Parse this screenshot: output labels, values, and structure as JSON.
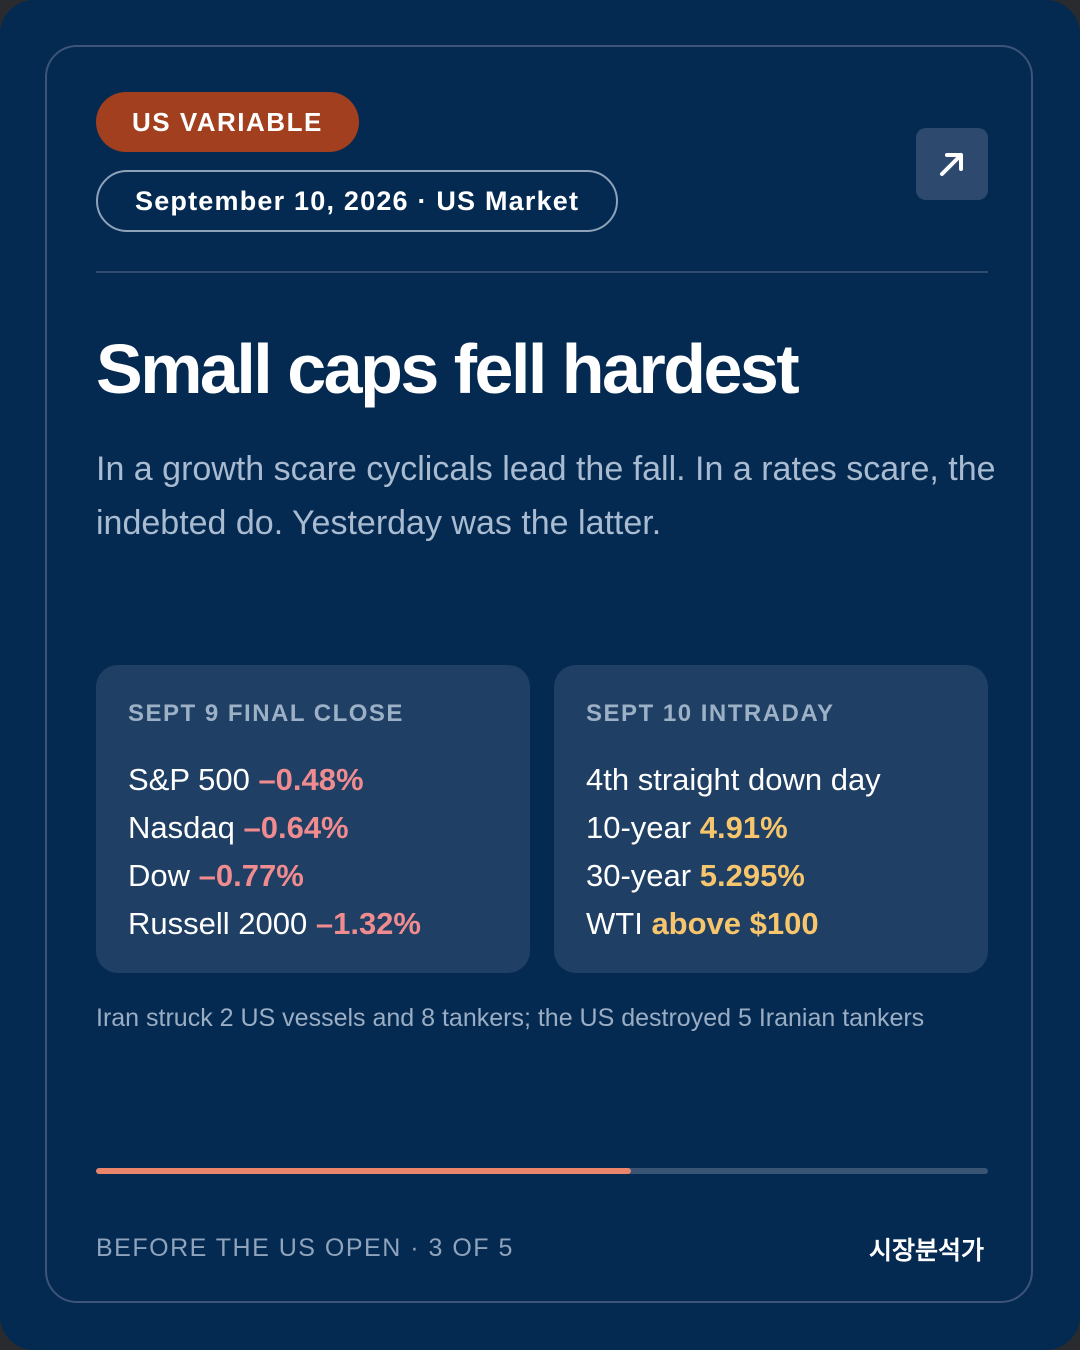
{
  "header": {
    "badge": "US VARIABLE",
    "date_line": "September 10, 2026 · US Market",
    "share_icon": "arrow-up-right-icon"
  },
  "headline": "Small caps fell hardest",
  "lede": "In a growth scare cyclicals lead the fall. In a rates scare, the indebted do. Yesterday was the latter.",
  "panels": [
    {
      "title": "SEPT 9 FINAL CLOSE",
      "rows": [
        {
          "label": "S&P 500",
          "value": "–0.48%"
        },
        {
          "label": "Nasdaq",
          "value": "–0.64%"
        },
        {
          "label": "Dow",
          "value": "–0.77%"
        },
        {
          "label": "Russell 2000",
          "value": "–1.32%"
        }
      ]
    },
    {
      "title": "SEPT 10 INTRADAY",
      "rows": [
        {
          "label": "4th straight down day",
          "value": ""
        },
        {
          "label": "10-year",
          "value": "4.91%"
        },
        {
          "label": "30-year",
          "value": "5.295%"
        },
        {
          "label": "WTI",
          "value": "above $100"
        }
      ]
    }
  ],
  "footnote": "Iran struck 2 US vessels and 8 tankers; the US destroyed 5 Iranian tankers",
  "progress": {
    "current": 3,
    "total": 5,
    "fraction": 0.6
  },
  "footer": {
    "left": "BEFORE THE US OPEN · 3 OF 5",
    "right": "시장분석가"
  },
  "colors": {
    "background": "#052a52",
    "badge": "#a13f1f",
    "negative": "#f08b8f",
    "highlight": "#f7c56c",
    "progress": "#e8856b"
  }
}
